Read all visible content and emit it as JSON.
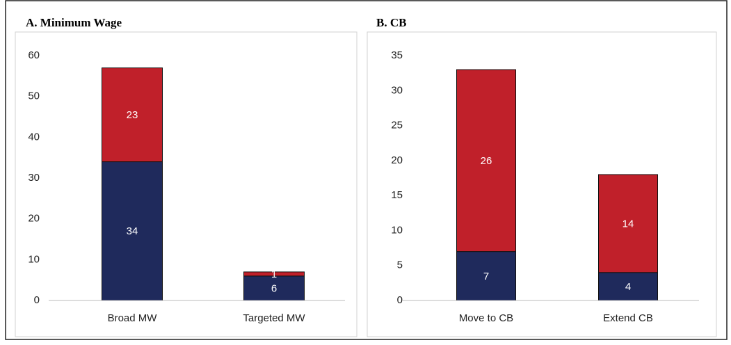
{
  "chart_data": [
    {
      "type": "stacked-bar",
      "title": "A. Minimum Wage",
      "categories": [
        "Broad MW",
        "Targeted MW"
      ],
      "series": [
        {
          "color": "#1f2a5c",
          "values": [
            34,
            6
          ]
        },
        {
          "color": "#c0202a",
          "values": [
            23,
            1
          ]
        }
      ],
      "ylim": [
        0,
        60
      ],
      "yticks": [
        0,
        10,
        20,
        30,
        40,
        50,
        60
      ],
      "grid": false
    },
    {
      "type": "stacked-bar",
      "title": "B. CB",
      "categories": [
        "Move to CB",
        "Extend CB"
      ],
      "series": [
        {
          "color": "#1f2a5c",
          "values": [
            7,
            4
          ]
        },
        {
          "color": "#c0202a",
          "values": [
            26,
            14
          ]
        }
      ],
      "ylim": [
        0,
        35
      ],
      "yticks": [
        0,
        5,
        10,
        15,
        20,
        25,
        30,
        35
      ],
      "grid": false
    }
  ]
}
